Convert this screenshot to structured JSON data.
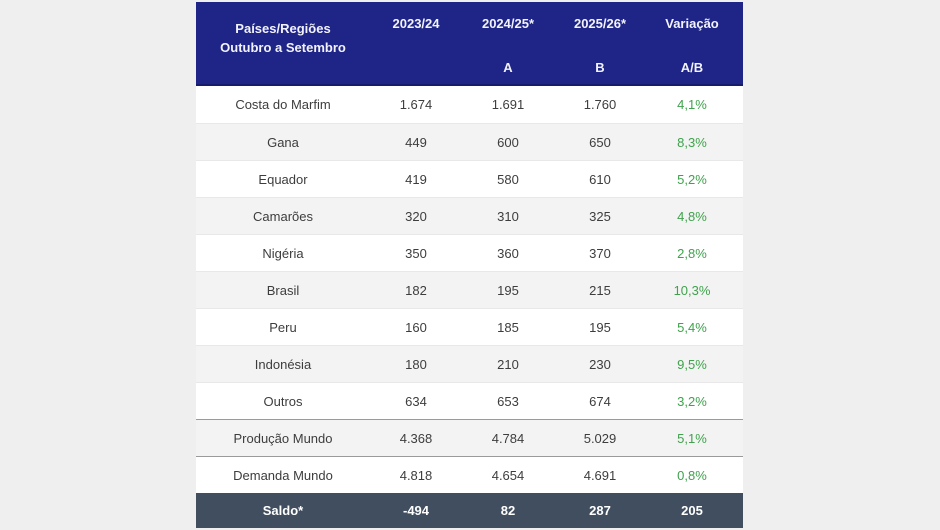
{
  "colors": {
    "page_bg": "#efefef",
    "header_bg": "#1f2487",
    "header_text": "#f2f3fb",
    "row_bg": "#ffffff",
    "row_alt_bg": "#f3f3f3",
    "row_divider": "#e8e8e8",
    "section_divider": "#9a9a9a",
    "body_text": "#3d3d3d",
    "variation_green": "#3fa24c",
    "footer_bg": "#414e5f",
    "footer_text": "#ffffff"
  },
  "header": {
    "col1": {
      "line1": "Países/Regiões",
      "line2": "Outubro a Setembro"
    },
    "cols": [
      {
        "line1": "2023/24",
        "line2": ""
      },
      {
        "line1": "2024/25*",
        "line2": "A"
      },
      {
        "line1": "2025/26*",
        "line2": "B"
      },
      {
        "line1": "Variação",
        "line2": "A/B"
      }
    ]
  },
  "table": {
    "rows": [
      {
        "label": "Costa do Marfim",
        "values": [
          "1.674",
          "1.691",
          "1.760"
        ],
        "variation": "4,1%",
        "section": "countries"
      },
      {
        "label": "Gana",
        "values": [
          "449",
          "600",
          "650"
        ],
        "variation": "8,3%",
        "section": "countries"
      },
      {
        "label": "Equador",
        "values": [
          "419",
          "580",
          "610"
        ],
        "variation": "5,2%",
        "section": "countries"
      },
      {
        "label": "Camarões",
        "values": [
          "320",
          "310",
          "325"
        ],
        "variation": "4,8%",
        "section": "countries"
      },
      {
        "label": "Nigéria",
        "values": [
          "350",
          "360",
          "370"
        ],
        "variation": "2,8%",
        "section": "countries"
      },
      {
        "label": "Brasil",
        "values": [
          "182",
          "195",
          "215"
        ],
        "variation": "10,3%",
        "section": "countries"
      },
      {
        "label": "Peru",
        "values": [
          "160",
          "185",
          "195"
        ],
        "variation": "5,4%",
        "section": "countries"
      },
      {
        "label": "Indonésia",
        "values": [
          "180",
          "210",
          "230"
        ],
        "variation": "9,5%",
        "section": "countries"
      },
      {
        "label": "Outros",
        "values": [
          "634",
          "653",
          "674"
        ],
        "variation": "3,2%",
        "section": "countries"
      },
      {
        "label": "Produção Mundo",
        "values": [
          "4.368",
          "4.784",
          "5.029"
        ],
        "variation": "5,1%",
        "section": "world"
      },
      {
        "label": "Demanda Mundo",
        "values": [
          "4.818",
          "4.654",
          "4.691"
        ],
        "variation": "0,8%",
        "section": "world"
      }
    ],
    "footer": {
      "label": "Saldo*",
      "values": [
        "-494",
        "82",
        "287",
        "205"
      ]
    }
  },
  "chart_data": {
    "type": "table",
    "columns": [
      "Países/Regiões Outubro a Setembro",
      "2023/24",
      "2024/25* (A)",
      "2025/26* (B)",
      "Variação A/B"
    ],
    "rows": [
      [
        "Costa do Marfim",
        1674,
        1691,
        1760,
        "4,1%"
      ],
      [
        "Gana",
        449,
        600,
        650,
        "8,3%"
      ],
      [
        "Equador",
        419,
        580,
        610,
        "5,2%"
      ],
      [
        "Camarões",
        320,
        310,
        325,
        "4,8%"
      ],
      [
        "Nigéria",
        350,
        360,
        370,
        "2,8%"
      ],
      [
        "Brasil",
        182,
        195,
        215,
        "10,3%"
      ],
      [
        "Peru",
        160,
        185,
        195,
        "5,4%"
      ],
      [
        "Indonésia",
        180,
        210,
        230,
        "9,5%"
      ],
      [
        "Outros",
        634,
        653,
        674,
        "3,2%"
      ],
      [
        "Produção Mundo",
        4368,
        4784,
        5029,
        "5,1%"
      ],
      [
        "Demanda Mundo",
        4818,
        4654,
        4691,
        "0,8%"
      ],
      [
        "Saldo*",
        -494,
        82,
        287,
        205
      ]
    ]
  }
}
